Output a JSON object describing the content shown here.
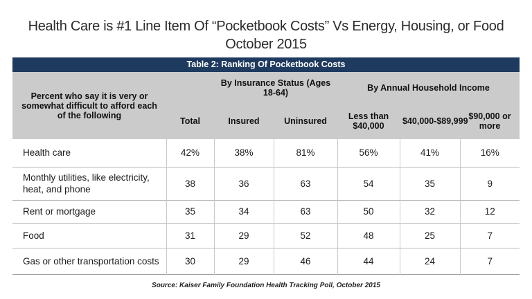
{
  "slide_title": {
    "line1": "Health Care is #1 Line Item Of “Pocketbook Costs” Vs Energy, Housing, or Food",
    "line2": "October 2015"
  },
  "chart_data": {
    "type": "table",
    "title": "Table 2: Ranking Of Pocketbook Costs",
    "row_header": "Percent who say it is very or somewhat difficult to afford each of the following",
    "column_groups": [
      {
        "label": "By Insurance Status (Ages 18-64)",
        "span": 2
      },
      {
        "label": "By Annual Household Income",
        "span": 3
      }
    ],
    "columns": [
      "Total",
      "Insured",
      "Uninsured",
      "Less than $40,000",
      "$40,000-$89,999",
      "$90,000 or more"
    ],
    "rows": [
      {
        "label": "Health care",
        "values": [
          "42%",
          "38%",
          "81%",
          "56%",
          "41%",
          "16%"
        ]
      },
      {
        "label": "Monthly utilities, like electricity, heat, and phone",
        "values": [
          "38",
          "36",
          "63",
          "54",
          "35",
          "9"
        ]
      },
      {
        "label": "Rent or mortgage",
        "values": [
          "35",
          "34",
          "63",
          "50",
          "32",
          "12"
        ]
      },
      {
        "label": "Food",
        "values": [
          "31",
          "29",
          "52",
          "48",
          "25",
          "7"
        ]
      },
      {
        "label": "Gas or other transportation costs",
        "values": [
          "30",
          "29",
          "46",
          "44",
          "24",
          "7"
        ]
      }
    ]
  },
  "source": "Source: Kaiser Family Foundation Health Tracking Poll, October 2015",
  "colors": {
    "title_bar_bg": "#1e3a5f",
    "title_bar_text": "#ffffff",
    "header_bg": "#cbcbcb",
    "grid_line": "#c9c9c9",
    "row_line": "#b9b9b9",
    "table_bottom": "#9e9e9e",
    "text": "#1c1c1c"
  }
}
